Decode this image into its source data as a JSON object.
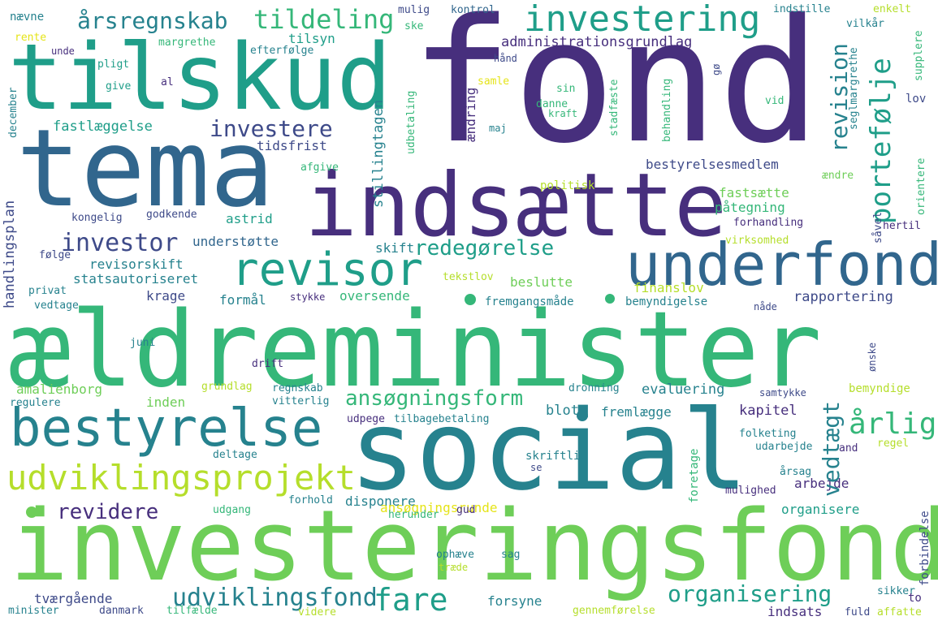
{
  "palette": {
    "deep_purple": "#472f7d",
    "indigo": "#3e4a89",
    "blue": "#31668d",
    "teal": "#26828e",
    "sea_green": "#1f9e89",
    "green": "#35b779",
    "light_green": "#6ece58",
    "lime": "#b5de2b",
    "yellow": "#e5e419"
  },
  "words": {
    "fond": "fond",
    "tilskud": "tilskud",
    "tema": "tema",
    "indsaette": "indsætte",
    "aeldreminister": "ældreminister",
    "social": "social",
    "investeringsfond": "investeringsfond",
    "bestyrelse": "bestyrelse",
    "underfond": "underfond",
    "revisor": "revisor",
    "investering": "investering",
    "aarsregnskab": "årsregnskab",
    "tildeling": "tildeling",
    "udviklingsprojekt": "udviklingsprojekt",
    "udviklingsfond": "udviklingsfond",
    "portefolje": "portefølje",
    "revision": "revision",
    "investere": "investere",
    "investor": "investor",
    "redegorelse": "redegørelse",
    "ansogningsform": "ansøgningsform",
    "aarlig": "årlig",
    "vedtaegt": "vedtægt",
    "fare": "fare",
    "revidere": "revidere",
    "organisering": "organisering",
    "administrationsgrundlag": "administrationsgrundlag",
    "navne": "nævne",
    "rente": "rente",
    "unde": "unde",
    "tilsyn": "tilsyn",
    "margrethe": "margrethe",
    "efterfolge": "efterfølge",
    "pligt": "pligt",
    "give": "give",
    "al": "al",
    "december": "december",
    "fastlaeggelse": "fastlæggelse",
    "tidsfrist": "tidsfrist",
    "stillingtagen": "stillingtagen",
    "afgive": "afgive",
    "handlingsplan": "handlingsplan",
    "kongelig": "kongelig",
    "godkende": "godkende",
    "astrid": "astrid",
    "understotte": "understøtte",
    "folge": "følge",
    "revisorskift": "revisorskift",
    "statsautoriseret": "statsautoriseret",
    "privat": "privat",
    "vedtage": "vedtage",
    "krage": "krage",
    "formaal": "formål",
    "stykke": "stykke",
    "juni": "juni",
    "drift": "drift",
    "amalienborg": "amalienborg",
    "grundlag": "grundlag",
    "regnskab": "regnskab",
    "regulere": "regulere",
    "vitterlig": "vitterlig",
    "inden": "inden",
    "udpege": "udpege",
    "tilbagebetaling": "tilbagebetaling",
    "deltage": "deltage",
    "udgang": "udgang",
    "forhold": "forhold",
    "herunder": "herunder",
    "gud": "gud",
    "tvaergaaende": "tværgående",
    "minister": "minister",
    "danmark": "danmark",
    "tilfaelde": "tilfælde",
    "videre": "videre",
    "ophaeve": "ophæve",
    "traede": "træde",
    "sag": "sag",
    "mulig": "mulig",
    "kontrol": "kontrol",
    "ske": "ske",
    "haand": "hånd",
    "samle": "samle",
    "sin": "sin",
    "danne": "danne",
    "kraft": "kraft",
    "maj": "maj",
    "aendring": "ændring",
    "udbetaling": "udbetaling",
    "stadfaeste": "stadfæste",
    "behandling": "behandling",
    "politisk": "politisk",
    "bestyrelsesmedlem": "bestyrelsesmedlem",
    "fastsaette": "fastsætte",
    "paategning": "påtegning",
    "skift": "skift",
    "beslutte": "beslutte",
    "finanslov": "finanslov",
    "tekstlov": "tekstlov",
    "oversende": "oversende",
    "fremgangsmaade": "fremgangsmåde",
    "bemyndigelse": "bemyndigelse",
    "naade": "nåde",
    "rapportering": "rapportering",
    "evaluering": "evaluering",
    "samtykke": "samtykke",
    "bemyndige": "bemyndige",
    "kapitel": "kapitel",
    "blot": "blot",
    "fremlaegge": "fremlægge",
    "folketing": "folketing",
    "udarbejde": "udarbejde",
    "and": "and",
    "regel": "regel",
    "skriftlig": "skriftlig",
    "se": "se",
    "foretage": "foretage",
    "aarsag": "årsag",
    "mulighed": "mulighed",
    "arbejde": "arbejde",
    "disponere": "disponere",
    "ansogningsrunde": "ansøgningsrunde",
    "organisere": "organisere",
    "forsyne": "forsyne",
    "gennemforelse": "gennemførelse",
    "indsats": "indsats",
    "sikker": "sikker",
    "to": "to",
    "fuld": "fuld",
    "affatte": "affatte",
    "forbindelse": "forbindelse",
    "indstille": "indstille",
    "vilkaar": "vilkår",
    "enkelt": "enkelt",
    "supplere": "supplere",
    "seglmargrethe": "seglmargrethe",
    "go": "gø",
    "vid": "vid",
    "aendre": "ændre",
    "orientere": "orientere",
    "saavel": "såvel",
    "hertil": "hertil",
    "forhandling": "forhandling",
    "virksomhed": "virksomhed",
    "lov": "lov",
    "dronning": "dronning",
    "onske": "ønske"
  }
}
